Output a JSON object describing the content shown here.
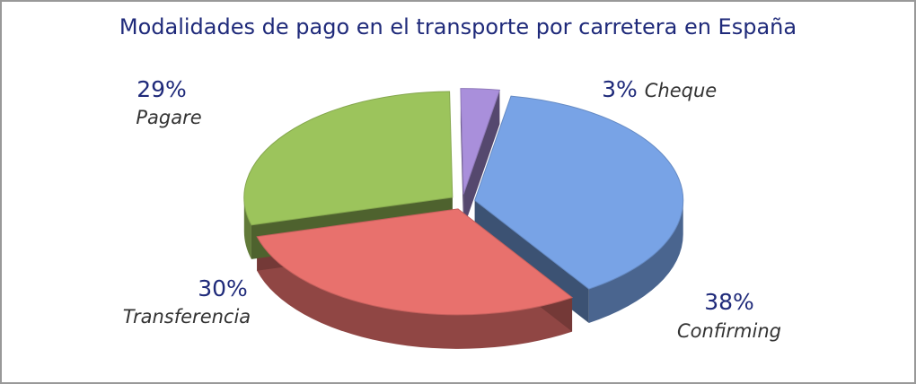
{
  "chart_data": {
    "type": "pie",
    "title": "Modalidades de pago en el transporte por carretera en España",
    "categories": [
      "Confirming",
      "Transferencia",
      "Pagare",
      "Cheque"
    ],
    "values": [
      38,
      30,
      29,
      3
    ],
    "value_labels": [
      "38%",
      "30%",
      "29%",
      "3%"
    ],
    "colors": [
      "#78a3e6",
      "#e8716d",
      "#9cc45c",
      "#a98fdb"
    ]
  }
}
